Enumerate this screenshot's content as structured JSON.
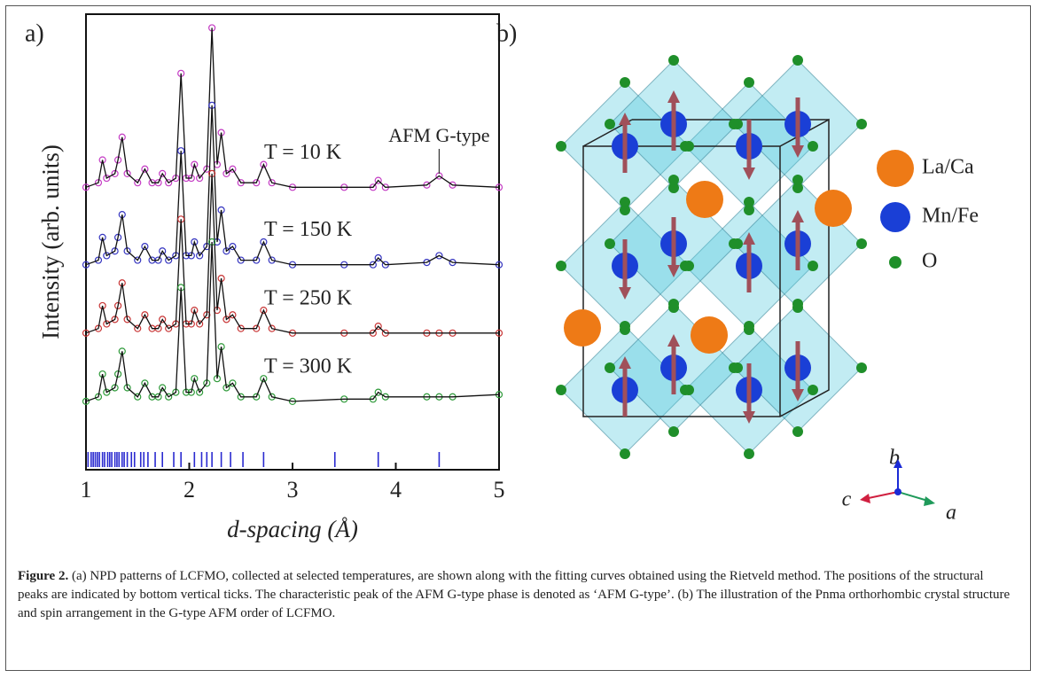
{
  "chart_data": {
    "type": "line",
    "panel_label": "a)",
    "x_label": "d-spacing (Å)",
    "y_label": "Intensity (arb. units)",
    "xlim": [
      1,
      5
    ],
    "xticks": [
      1,
      2,
      3,
      4,
      5
    ],
    "ylim": [
      0,
      100
    ],
    "x": [
      1.0,
      1.12,
      1.16,
      1.2,
      1.28,
      1.31,
      1.35,
      1.4,
      1.5,
      1.57,
      1.64,
      1.7,
      1.74,
      1.8,
      1.87,
      1.92,
      1.97,
      2.02,
      2.05,
      2.1,
      2.17,
      2.22,
      2.27,
      2.31,
      2.36,
      2.42,
      2.5,
      2.65,
      2.72,
      2.8,
      3.0,
      3.5,
      3.78,
      3.83,
      3.9,
      4.3,
      4.42,
      4.55,
      5.0
    ],
    "series": [
      {
        "name": "T = 10 K",
        "color": "#c43cc4",
        "values": [
          62,
          63,
          68,
          64,
          65,
          68,
          73,
          65,
          63,
          66,
          63,
          63,
          65,
          63,
          64,
          87,
          64,
          64,
          67,
          64,
          66,
          97,
          67,
          74,
          65,
          66,
          63,
          63,
          67,
          63,
          62,
          62,
          62,
          63.5,
          62,
          62.5,
          64.5,
          62.5,
          62
        ]
      },
      {
        "name": "T = 150 K",
        "color": "#3535c0",
        "values": [
          45,
          46,
          51,
          47,
          48,
          51,
          56,
          48,
          46,
          49,
          46,
          46,
          48,
          46,
          47,
          70,
          47,
          47,
          50,
          47,
          49,
          80,
          50,
          57,
          48,
          49,
          46,
          46,
          50,
          46,
          45,
          45,
          45,
          46.5,
          45,
          45.5,
          47,
          45.5,
          45
        ]
      },
      {
        "name": "T = 250 K",
        "color": "#c83535",
        "values": [
          30,
          31,
          36,
          32,
          33,
          36,
          41,
          33,
          31,
          34,
          31,
          31,
          33,
          31,
          32,
          55,
          32,
          32,
          35,
          32,
          34,
          65,
          35,
          42,
          33,
          34,
          31,
          31,
          35,
          31,
          30,
          30,
          30,
          31.5,
          30,
          30,
          30,
          30,
          30
        ]
      },
      {
        "name": "T = 300 K",
        "color": "#2f9a3a",
        "values": [
          15,
          16,
          21,
          17,
          18,
          21,
          26,
          18,
          16,
          19,
          16,
          16,
          18,
          16,
          17,
          40,
          17,
          17,
          20,
          17,
          19,
          50,
          20,
          27,
          18,
          19,
          16,
          16,
          20,
          16,
          15,
          15.5,
          15.5,
          17,
          16,
          16,
          16,
          16,
          16.5
        ]
      }
    ],
    "fit_color": "#111111",
    "peak_positions": [
      1.02,
      1.05,
      1.07,
      1.09,
      1.11,
      1.13,
      1.16,
      1.18,
      1.21,
      1.23,
      1.25,
      1.28,
      1.3,
      1.32,
      1.35,
      1.37,
      1.4,
      1.44,
      1.47,
      1.53,
      1.56,
      1.6,
      1.67,
      1.74,
      1.85,
      1.92,
      2.05,
      2.12,
      2.17,
      2.22,
      2.31,
      2.4,
      2.52,
      2.72,
      3.41,
      3.83,
      4.42
    ],
    "peak_color": "#2a2ad0",
    "annotation": {
      "text": "AFM G-type",
      "x": 4.42
    }
  },
  "panel_b": {
    "label": "b)",
    "legend": [
      "La/Ca",
      "Mn/Fe",
      "O"
    ],
    "axes": [
      "b",
      "c",
      "a"
    ]
  },
  "caption": {
    "label": "Figure 2.",
    "text": " (a) NPD patterns of LCFMO, collected at selected temperatures, are shown along with the fitting curves obtained using the Rietveld method. The positions of the structural peaks are indicated by bottom vertical ticks. The characteristic peak of the AFM G-type phase is denoted as ‘AFM G-type’. (b) The illustration of the Pnma orthorhombic crystal structure and spin arrangement in the G-type AFM order of LCFMO."
  }
}
